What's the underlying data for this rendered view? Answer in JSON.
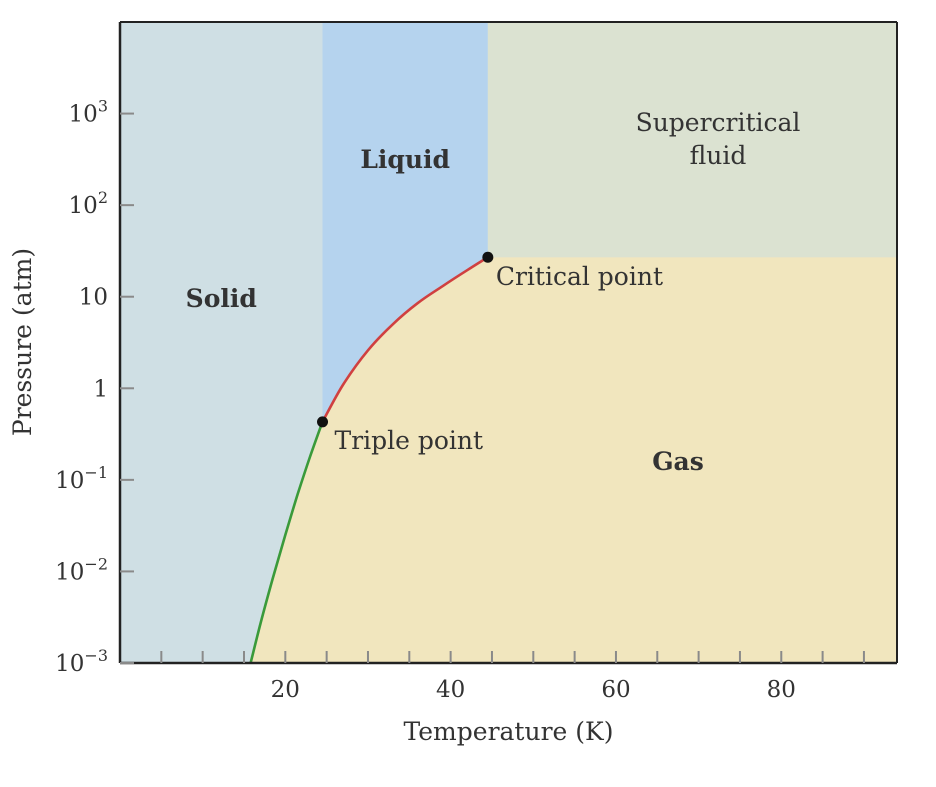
{
  "chart_data": {
    "type": "phase-diagram",
    "title": "",
    "xlabel": "Temperature (K)",
    "ylabel": "Pressure (atm)",
    "x_scale": "linear",
    "y_scale": "log",
    "xlim": [
      0,
      94
    ],
    "ylim": [
      0.001,
      10000
    ],
    "x_ticks": [
      {
        "value": 20,
        "label": "20"
      },
      {
        "value": 40,
        "label": "40"
      },
      {
        "value": 60,
        "label": "60"
      },
      {
        "value": 80,
        "label": "80"
      }
    ],
    "x_minor_ticks": [
      5,
      10,
      15,
      25,
      30,
      35,
      45,
      50,
      55,
      65,
      70,
      75,
      85,
      90
    ],
    "y_ticks": [
      {
        "value": 0.001,
        "base": "10",
        "exp": "−3",
        "label": ""
      },
      {
        "value": 0.01,
        "base": "10",
        "exp": "−2",
        "label": ""
      },
      {
        "value": 0.1,
        "base": "10",
        "exp": "−1",
        "label": ""
      },
      {
        "value": 1,
        "base": "",
        "exp": "",
        "label": "1"
      },
      {
        "value": 10,
        "base": "",
        "exp": "",
        "label": "10"
      },
      {
        "value": 100,
        "base": "10",
        "exp": "2",
        "label": ""
      },
      {
        "value": 1000,
        "base": "10",
        "exp": "3",
        "label": ""
      }
    ],
    "grid": false,
    "triple_point": {
      "T": 24.5,
      "P": 0.43,
      "label": "Triple point"
    },
    "critical_point": {
      "T": 44.5,
      "P": 27,
      "label": "Critical point"
    },
    "sublimation_curve": {
      "T": [
        15.8,
        17,
        18.5,
        20,
        21.5,
        23,
        24.5
      ],
      "P": [
        0.001,
        0.0027,
        0.0085,
        0.025,
        0.07,
        0.18,
        0.43
      ]
    },
    "vaporization_curve": {
      "T": [
        24.5,
        27,
        30,
        33,
        36,
        39,
        42,
        44.5
      ],
      "P": [
        0.43,
        1.1,
        2.6,
        5.0,
        8.5,
        13,
        19.5,
        27
      ]
    },
    "regions": [
      {
        "name": "solid",
        "label": "Solid",
        "color": "#cfdfe4"
      },
      {
        "name": "liquid",
        "label": "Liquid",
        "color": "#b5d3ee"
      },
      {
        "name": "gas",
        "label": "Gas",
        "color": "#f1e6be"
      },
      {
        "name": "supercritical",
        "label_lines": [
          "Supercritical",
          "fluid"
        ],
        "color": "#dbe2d1"
      }
    ],
    "colors": {
      "sublimation_curve": "#3a9a3a",
      "vaporization_curve": "#d04040",
      "axis": "#222222",
      "point": "#111111"
    }
  }
}
